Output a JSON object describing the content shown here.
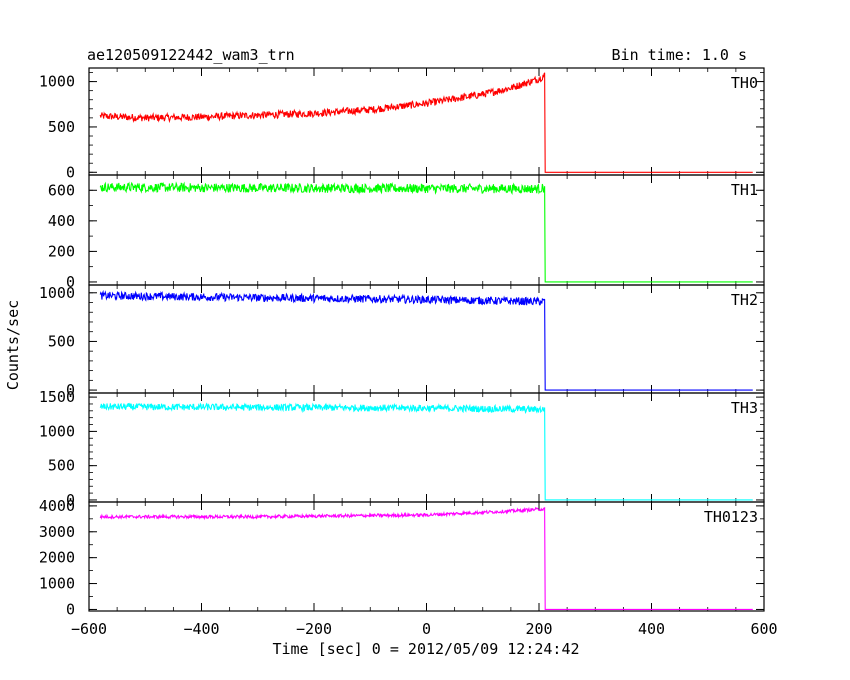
{
  "chart_data": {
    "type": "line",
    "title": "ae120509122442_wam3_trn",
    "bin_time": "Bin time: 1.0 s",
    "xlabel": "Time [sec] 0 = 2012/05/09 12:24:42",
    "ylabel": "Counts/sec",
    "xlim": [
      -600,
      600
    ],
    "x_ticks": [
      "−600",
      "−400",
      "−200",
      "0",
      "200",
      "400",
      "600"
    ],
    "x_tick_values": [
      -600,
      -400,
      -200,
      0,
      200,
      400,
      600
    ],
    "panels": [
      {
        "name": "TH0",
        "color": "#ff0000",
        "ylim": [
          -30,
          1150
        ],
        "y_ticks": [
          0,
          500,
          1000
        ],
        "x_start": -580,
        "x_drop": 210,
        "x_end": 580,
        "points_before_drop": [
          [
            -580,
            620
          ],
          [
            -500,
            600
          ],
          [
            -400,
            610
          ],
          [
            -300,
            630
          ],
          [
            -200,
            650
          ],
          [
            -100,
            690
          ],
          [
            0,
            760
          ],
          [
            100,
            860
          ],
          [
            150,
            930
          ],
          [
            200,
            1030
          ],
          [
            210,
            1070
          ]
        ],
        "noise": 40,
        "after_drop": 0
      },
      {
        "name": "TH1",
        "color": "#00ff00",
        "ylim": [
          -20,
          700
        ],
        "y_ticks": [
          0,
          200,
          400,
          600
        ],
        "x_start": -580,
        "x_drop": 210,
        "x_end": 580,
        "points_before_drop": [
          [
            -580,
            620
          ],
          [
            -300,
            615
          ],
          [
            0,
            612
          ],
          [
            200,
            610
          ],
          [
            210,
            615
          ]
        ],
        "noise": 30,
        "after_drop": 0
      },
      {
        "name": "TH2",
        "color": "#0000ff",
        "ylim": [
          -30,
          1080
        ],
        "y_ticks": [
          0,
          500,
          1000
        ],
        "x_start": -580,
        "x_drop": 210,
        "x_end": 580,
        "points_before_drop": [
          [
            -580,
            970
          ],
          [
            -300,
            950
          ],
          [
            0,
            930
          ],
          [
            200,
            910
          ],
          [
            210,
            910
          ]
        ],
        "noise": 40,
        "after_drop": 0
      },
      {
        "name": "TH3",
        "color": "#00ffff",
        "ylim": [
          -30,
          1560
        ],
        "y_ticks": [
          0,
          500,
          1000,
          1500
        ],
        "x_start": -580,
        "x_drop": 210,
        "x_end": 580,
        "points_before_drop": [
          [
            -580,
            1360
          ],
          [
            -300,
            1350
          ],
          [
            0,
            1340
          ],
          [
            200,
            1320
          ],
          [
            210,
            1320
          ]
        ],
        "noise": 50,
        "after_drop": 0
      },
      {
        "name": "TH0123",
        "color": "#ff00ff",
        "ylim": [
          -60,
          4150
        ],
        "y_ticks": [
          0,
          1000,
          2000,
          3000,
          4000
        ],
        "x_start": -580,
        "x_drop": 210,
        "x_end": 580,
        "points_before_drop": [
          [
            -580,
            3580
          ],
          [
            -300,
            3580
          ],
          [
            0,
            3650
          ],
          [
            150,
            3800
          ],
          [
            200,
            3870
          ],
          [
            210,
            3880
          ]
        ],
        "noise": 60,
        "after_drop": 0
      }
    ],
    "grid": false,
    "legend": "panel labels top-right"
  }
}
